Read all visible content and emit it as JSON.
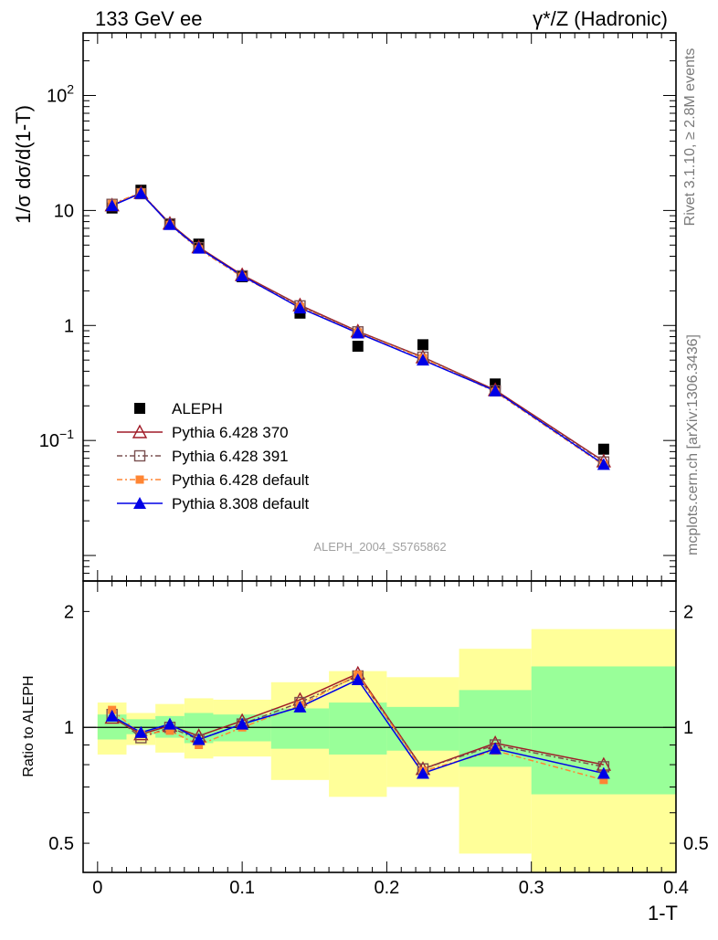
{
  "header": {
    "left": "133 GeV ee",
    "right": "γ*/Z (Hadronic)"
  },
  "side": {
    "rivet": "Rivet 3.1.10, ≥ 2.8M events",
    "mcplots": "mcplots.cern.ch [arXiv:1306.3436]"
  },
  "watermark": "ALEPH_2004_S5765862",
  "colors": {
    "aleph": "#000000",
    "p370": "#a01c28",
    "p391": "#7a5050",
    "p6def": "#ff8533",
    "p8def": "#0000e6",
    "band_inner": "#99ff99",
    "band_outer": "#ffff99"
  },
  "chart_data": [
    {
      "type": "scatter",
      "ylabel_prefix": "1/σ  dσ/d(1-T)",
      "xlim": [
        -0.01,
        0.4
      ],
      "ylim": [
        0.006,
        350
      ],
      "log_y": true,
      "y_ticks": [
        {
          "value": 100,
          "label": "10",
          "exp": "2"
        },
        {
          "value": 10,
          "label": "10",
          "exp": ""
        },
        {
          "value": 1,
          "label": "1",
          "exp": ""
        },
        {
          "value": 0.1,
          "label": "10",
          "exp": "−1"
        }
      ],
      "x": [
        0.01,
        0.03,
        0.05,
        0.07,
        0.1,
        0.14,
        0.18,
        0.225,
        0.275,
        0.35
      ],
      "series": [
        {
          "name": "ALEPH",
          "marker": "square",
          "values": [
            10.5,
            15.0,
            7.6,
            5.1,
            2.65,
            1.28,
            0.66,
            0.68,
            0.31,
            0.084
          ]
        },
        {
          "name": "Pythia 6.428 370",
          "marker": "triangle-open",
          "values": [
            11.1,
            14.2,
            7.7,
            4.8,
            2.75,
            1.5,
            0.89,
            0.53,
            0.275,
            0.066
          ]
        },
        {
          "name": "Pythia 6.428 391",
          "marker": "square-open",
          "values": [
            11.3,
            14.0,
            7.65,
            4.75,
            2.7,
            1.48,
            0.88,
            0.53,
            0.27,
            0.065
          ]
        },
        {
          "name": "Pythia 6.428 default",
          "marker": "square-small",
          "values": [
            11.4,
            14.3,
            7.5,
            4.6,
            2.65,
            1.45,
            0.87,
            0.52,
            0.265,
            0.061
          ]
        },
        {
          "name": "Pythia 8.308 default",
          "marker": "triangle",
          "values": [
            11.0,
            14.1,
            7.55,
            4.7,
            2.7,
            1.42,
            0.86,
            0.5,
            0.27,
            0.062
          ]
        }
      ]
    },
    {
      "type": "line",
      "ylabel": "Ratio to ALEPH",
      "xlabel": "1-T",
      "xlim": [
        -0.01,
        0.4
      ],
      "ylim": [
        0.42,
        2.4
      ],
      "log_y": true,
      "x_ticks": [
        0,
        0.1,
        0.2,
        0.3,
        0.4
      ],
      "x_tick_labels": [
        "0",
        "0.1",
        "0.2",
        "0.3",
        "0.4"
      ],
      "y_ticks": [
        0.5,
        1,
        2
      ],
      "y_tick_labels": [
        "0.5",
        "1",
        "2"
      ],
      "bins": [
        {
          "lo": 0.0,
          "hi": 0.02,
          "inner": [
            0.93,
            1.08
          ],
          "outer": [
            0.85,
            1.16
          ]
        },
        {
          "lo": 0.02,
          "hi": 0.04,
          "inner": [
            0.96,
            1.05
          ],
          "outer": [
            0.9,
            1.09
          ]
        },
        {
          "lo": 0.04,
          "hi": 0.06,
          "inner": [
            0.94,
            1.07
          ],
          "outer": [
            0.86,
            1.15
          ]
        },
        {
          "lo": 0.06,
          "hi": 0.08,
          "inner": [
            0.91,
            1.09
          ],
          "outer": [
            0.83,
            1.19
          ]
        },
        {
          "lo": 0.08,
          "hi": 0.12,
          "inner": [
            0.92,
            1.08
          ],
          "outer": [
            0.84,
            1.18
          ]
        },
        {
          "lo": 0.12,
          "hi": 0.16,
          "inner": [
            0.88,
            1.12
          ],
          "outer": [
            0.73,
            1.31
          ]
        },
        {
          "lo": 0.16,
          "hi": 0.2,
          "inner": [
            0.85,
            1.16
          ],
          "outer": [
            0.66,
            1.4
          ]
        },
        {
          "lo": 0.2,
          "hi": 0.25,
          "inner": [
            0.87,
            1.13
          ],
          "outer": [
            0.7,
            1.35
          ]
        },
        {
          "lo": 0.25,
          "hi": 0.3,
          "inner": [
            0.79,
            1.25
          ],
          "outer": [
            0.47,
            1.6
          ]
        },
        {
          "lo": 0.3,
          "hi": 0.4,
          "inner": [
            0.67,
            1.44
          ],
          "outer": [
            0.36,
            1.8
          ]
        }
      ],
      "x": [
        0.01,
        0.03,
        0.05,
        0.07,
        0.1,
        0.14,
        0.18,
        0.225,
        0.275,
        0.35
      ],
      "series": [
        {
          "name": "Pythia 6.428 370",
          "values": [
            1.06,
            0.96,
            1.01,
            0.95,
            1.04,
            1.18,
            1.38,
            0.78,
            0.91,
            0.8
          ]
        },
        {
          "name": "Pythia 6.428 391",
          "values": [
            1.08,
            0.94,
            1.0,
            0.93,
            1.02,
            1.16,
            1.36,
            0.78,
            0.9,
            0.79
          ]
        },
        {
          "name": "Pythia 6.428 default",
          "values": [
            1.11,
            0.96,
            0.98,
            0.9,
            1.0,
            1.14,
            1.37,
            0.77,
            0.87,
            0.73
          ]
        },
        {
          "name": "Pythia 8.308 default",
          "values": [
            1.07,
            0.97,
            1.02,
            0.93,
            1.02,
            1.13,
            1.33,
            0.76,
            0.88,
            0.76
          ]
        }
      ]
    }
  ]
}
